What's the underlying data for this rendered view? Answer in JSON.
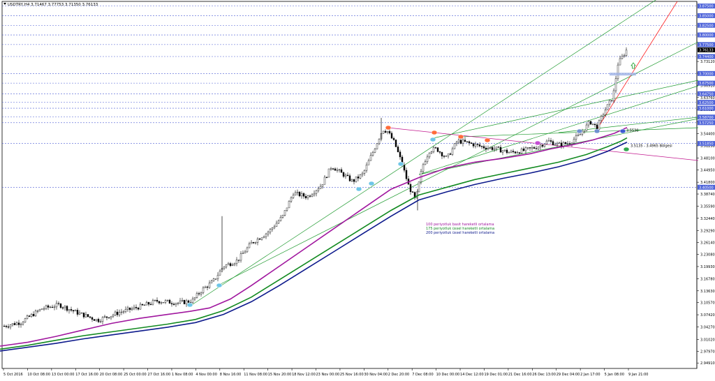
{
  "chart_data": {
    "type": "line",
    "title": "USDTRY,H4  3.71467 3.77753 3.71350 3.76133",
    "x_labels": [
      "5 Oct 2016",
      "10 Oct 08:00",
      "13 Oct 00:00",
      "17 Oct 16:00",
      "20 Oct 08:00",
      "25 Oct 00:00",
      "27 Oct 16:00",
      "1 Nov 08:00",
      "4 Nov 00:00",
      "8 Nov 16:00",
      "11 Nov 08:00",
      "15 Nov 20:00",
      "18 Nov 12:00",
      "23 Nov 00:00",
      "25 Nov 16:00",
      "30 Nov 04:00",
      "2 Dec 20:00",
      "7 Dec 08:00",
      "10 Dec 00:00",
      "14 Dec 12:00",
      "19 Dec 01:00",
      "21 Dec 16:00",
      "26 Dec 13:00",
      "29 Dec 04:00",
      "2 Jan 17:00",
      "5 Jan 08:00",
      "9 Jan 21:00"
    ],
    "y_ticks": [
      "2.94910",
      "2.97970",
      "3.01020",
      "3.04270",
      "3.07420",
      "3.10570",
      "3.13630",
      "3.16780",
      "3.19930",
      "3.23080",
      "3.26140",
      "3.29290",
      "3.32440",
      "3.35590",
      "3.38740",
      "3.41800",
      "3.44950",
      "3.48100",
      "3.51250",
      "3.54400",
      "3.57460",
      "3.60610",
      "3.63760",
      "3.66910",
      "3.70060",
      "3.73120"
    ],
    "ylim": [
      2.935,
      3.887
    ],
    "price_tags": [
      {
        "label": "3.87500",
        "v": 3.875
      },
      {
        "label": "3.85000",
        "v": 3.85
      },
      {
        "label": "3.82500",
        "v": 3.825
      },
      {
        "label": "3.80000",
        "v": 3.8
      },
      {
        "label": "3.77500",
        "v": 3.775
      },
      {
        "label": "3.74400",
        "v": 3.744
      },
      {
        "label": "3.70000",
        "v": 3.7
      },
      {
        "label": "3.67500",
        "v": 3.675
      },
      {
        "label": "3.64750",
        "v": 3.6475
      },
      {
        "label": "3.62500",
        "v": 3.625
      },
      {
        "label": "3.61000",
        "v": 3.61
      },
      {
        "label": "3.58700",
        "v": 3.587
      },
      {
        "label": "3.57250",
        "v": 3.5725
      },
      {
        "label": "3.51850",
        "v": 3.5185
      },
      {
        "label": "3.40500",
        "v": 3.405
      }
    ],
    "current_price": {
      "label": "3.76133",
      "v": 3.76133
    },
    "series": [
      {
        "name": "100 periyotluk basit hareketli ortalama",
        "color": "#a0169e",
        "x": [
          0,
          40,
          80,
          120,
          160,
          200,
          240,
          272,
          300,
          330,
          360,
          400,
          440,
          480,
          520,
          560,
          600,
          640,
          680,
          720,
          760,
          790,
          820,
          850,
          880,
          898
        ],
        "values": [
          2.993,
          3.003,
          3.018,
          3.035,
          3.052,
          3.065,
          3.075,
          3.083,
          3.092,
          3.115,
          3.15,
          3.2,
          3.25,
          3.3,
          3.35,
          3.4,
          3.43,
          3.455,
          3.47,
          3.48,
          3.492,
          3.505,
          3.515,
          3.528,
          3.545,
          3.56
        ]
      },
      {
        "name": "175 periyotluk üssel hareketli ortalama",
        "color": "#128a20",
        "x": [
          0,
          40,
          80,
          120,
          160,
          200,
          240,
          280,
          320,
          360,
          400,
          440,
          480,
          520,
          560,
          600,
          640,
          680,
          720,
          760,
          800,
          840,
          870,
          890,
          898
        ],
        "values": [
          2.985,
          2.995,
          3.008,
          3.02,
          3.03,
          3.04,
          3.05,
          3.062,
          3.085,
          3.12,
          3.165,
          3.21,
          3.255,
          3.3,
          3.345,
          3.385,
          3.405,
          3.425,
          3.44,
          3.455,
          3.47,
          3.49,
          3.51,
          3.525,
          3.533
        ]
      },
      {
        "name": "200 periyotluk üssel hareketli ortalama",
        "color": "#0d1a8c",
        "x": [
          0,
          40,
          80,
          120,
          160,
          200,
          240,
          280,
          320,
          360,
          400,
          440,
          480,
          520,
          560,
          600,
          640,
          680,
          720,
          760,
          800,
          840,
          870,
          890,
          898
        ],
        "values": [
          2.98,
          2.99,
          3.0,
          3.012,
          3.022,
          3.032,
          3.042,
          3.054,
          3.075,
          3.108,
          3.15,
          3.195,
          3.24,
          3.285,
          3.33,
          3.372,
          3.393,
          3.412,
          3.428,
          3.442,
          3.458,
          3.478,
          3.498,
          3.515,
          3.522
        ]
      }
    ],
    "annotations": [
      {
        "text": "3.5530",
        "v": 3.553
      },
      {
        "text": "3.5135 - 3.4965 Bölgesi",
        "v": 3.5135
      }
    ]
  }
}
